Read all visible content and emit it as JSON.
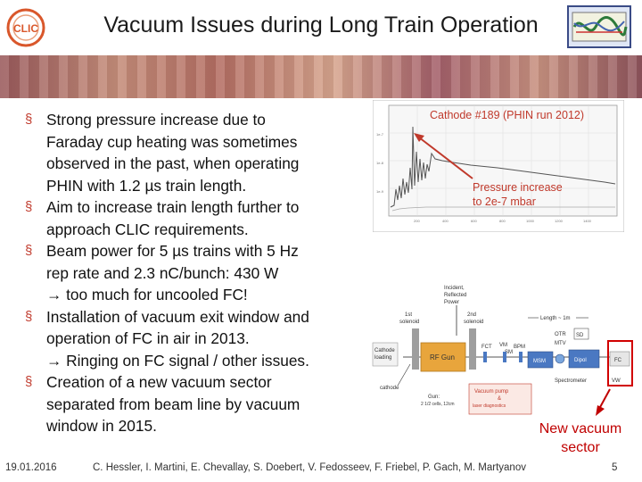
{
  "slide": {
    "title": "Vacuum Issues during Long Train Operation",
    "logo_text": "CLIC"
  },
  "bullets": [
    {
      "lines": [
        "Strong pressure increase due to",
        "Faraday cup heating was sometimes",
        "observed in the past, when operating",
        "PHIN with 1.2 µs train length."
      ]
    },
    {
      "lines": [
        "Aim to increase train length further to",
        "approach CLIC requirements."
      ]
    },
    {
      "lines": [
        "Beam power for 5 µs trains with 5 Hz",
        "rep rate and 2.3 nC/bunch: 430 W",
        "→ too much for uncooled FC!"
      ]
    },
    {
      "lines": [
        "Installation of vacuum exit window and",
        "operation of FC in air in 2013.",
        "→ Ringing on FC signal / other issues."
      ]
    },
    {
      "lines": [
        "Creation of a new vacuum sector",
        "separated from beam line by vacuum",
        "window in 2015."
      ]
    }
  ],
  "plot": {
    "title": "Cathode #189 (PHIN run 2012)",
    "annotation_line1": "Pressure increase",
    "annotation_line2": "to 2e-7 mbar"
  },
  "diagram": {
    "laser_label_1": "Incident,",
    "laser_label_2": "Reflected",
    "laser_label_3": "Power",
    "solenoid1_a": "1st",
    "solenoid1_b": "solenoid",
    "solenoid2_a": "2nd",
    "solenoid2_b": "solenoid",
    "cathode_loading_a": "Cathode",
    "cathode_loading_b": "loading",
    "cathode": "cathode",
    "rf_gun": "RF Gun",
    "fct": "FCT",
    "vm": "VM",
    "sm": "SM",
    "bpm": "BPM",
    "length": "Length ~ 1m",
    "otr": "OTR",
    "mtv": "MTV",
    "sd": "SD",
    "msm": "MSM",
    "dipol": "Dipol",
    "fc": "FC",
    "vw": "VW",
    "spectrometer": "Spectrometer",
    "gun_a": "Gun:",
    "gun_b": "2 1/2 cells, 12cm",
    "vacuum_a": "Vacuum pump",
    "vacuum_b": "&",
    "vacuum_c": "laser diagnostics"
  },
  "new_sector": {
    "line1": "New vacuum",
    "line2": "sector"
  },
  "footer": {
    "date": "19.01.2016",
    "authors": "C. Hessler, I. Martini, E. Chevallay, S. Doebert, V. Fedosseev, F. Friebel, P. Gach, M. Martyanov",
    "page": "5"
  },
  "colors": {
    "accent": "#c0392b",
    "new_sector": "#c00000",
    "gun_box": "#e8a53c"
  }
}
